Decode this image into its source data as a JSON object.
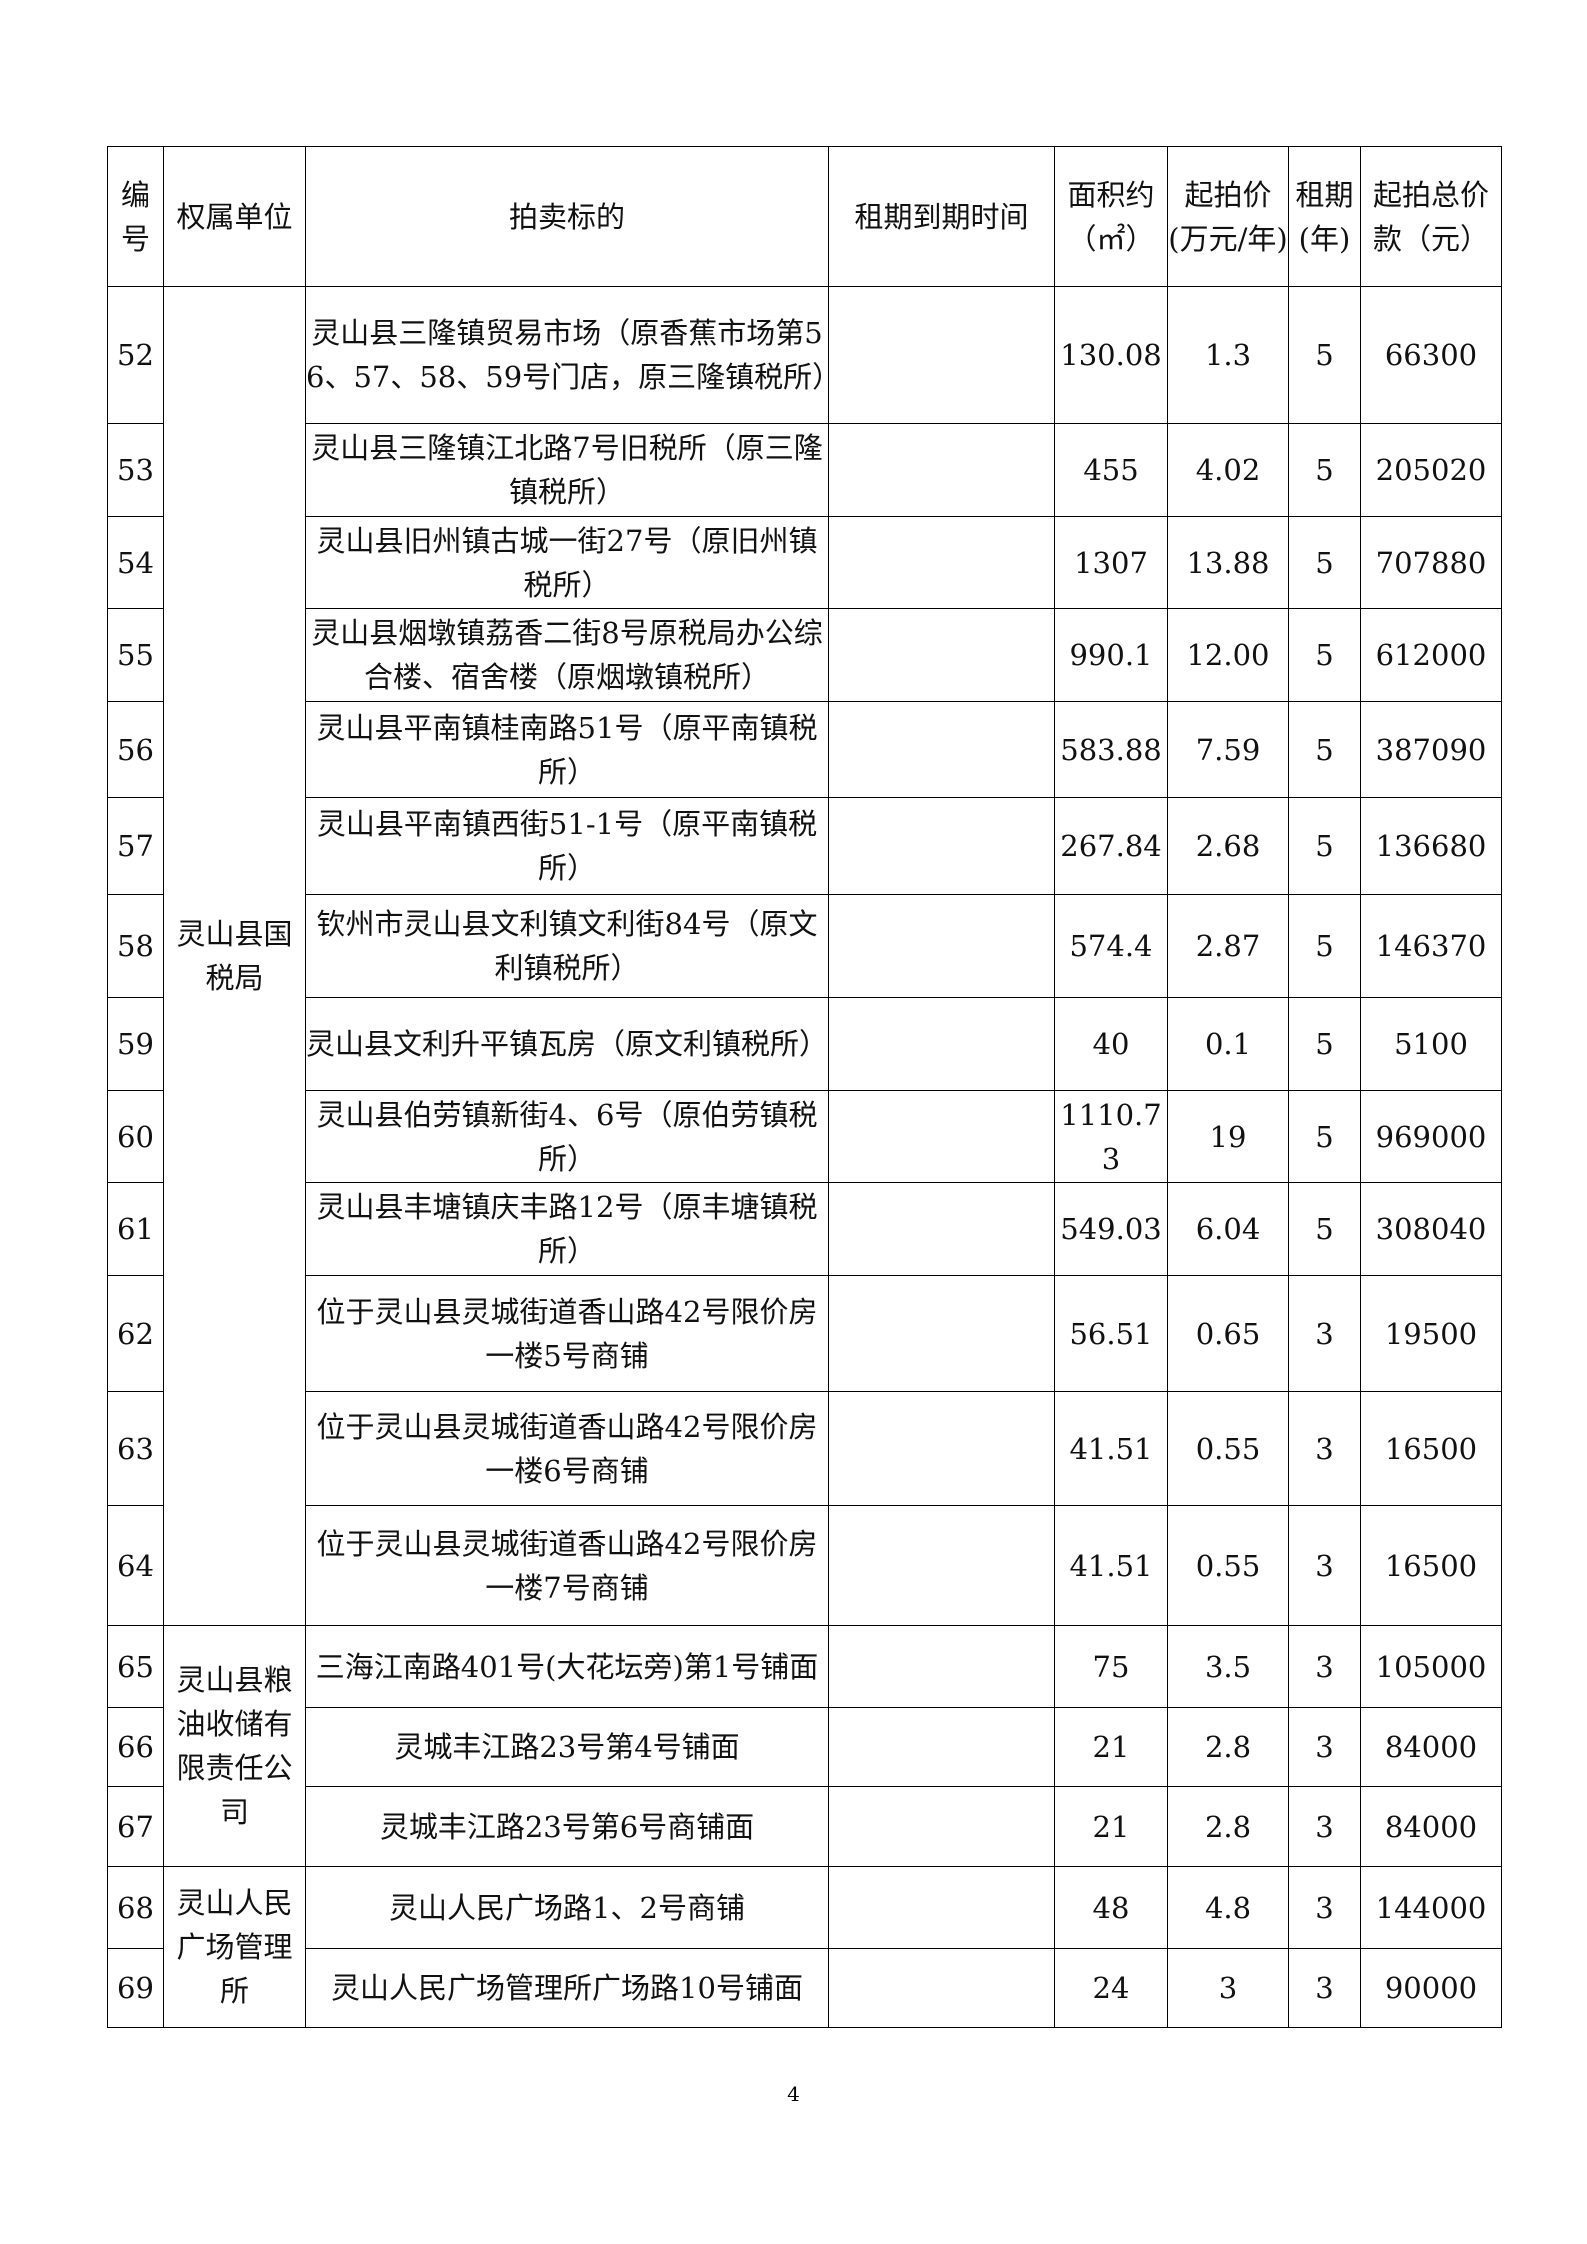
{
  "table": {
    "header": [
      "编号",
      "权属单位",
      "拍卖标的",
      "租期到期时间",
      "面积约（㎡）",
      "起拍价(万元/年)",
      "租期(年)",
      "起拍总价款（元）"
    ],
    "groups": [
      {
        "unit": "灵山县国税局",
        "rows": [
          [
            "52",
            "灵山县三隆镇贸易市场（原香蕉市场第56、57、58、59号门店，原三隆镇税所）",
            "130.08",
            "1.3",
            "5",
            "66300"
          ],
          [
            "53",
            "灵山县三隆镇江北路7号旧税所（原三隆镇税所）",
            "455",
            "4.02",
            "5",
            "205020"
          ],
          [
            "54",
            "灵山县旧州镇古城一街27号（原旧州镇税所）",
            "1307",
            "13.88",
            "5",
            "707880"
          ],
          [
            "55",
            "灵山县烟墩镇荔香二街8号原税局办公综合楼、宿舍楼（原烟墩镇税所）",
            "990.1",
            "12.00",
            "5",
            "612000"
          ],
          [
            "56",
            "灵山县平南镇桂南路51号（原平南镇税所）",
            "583.88",
            "7.59",
            "5",
            "387090"
          ],
          [
            "57",
            "灵山县平南镇西街51-1号（原平南镇税所）",
            "267.84",
            "2.68",
            "5",
            "136680"
          ],
          [
            "58",
            "钦州市灵山县文利镇文利街84号（原文利镇税所）",
            "574.4",
            "2.87",
            "5",
            "146370"
          ],
          [
            "59",
            "灵山县文利升平镇瓦房（原文利镇税所）",
            "40",
            "0.1",
            "5",
            "5100"
          ],
          [
            "60",
            "灵山县伯劳镇新街4、6号（原伯劳镇税所）",
            "1110.73",
            "19",
            "5",
            "969000"
          ],
          [
            "61",
            "灵山县丰塘镇庆丰路12号（原丰塘镇税所）",
            "549.03",
            "6.04",
            "5",
            "308040"
          ],
          [
            "62",
            "位于灵山县灵城街道香山路42号限价房一楼5号商铺",
            "56.51",
            "0.65",
            "3",
            "19500"
          ],
          [
            "63",
            "位于灵山县灵城街道香山路42号限价房一楼6号商铺",
            "41.51",
            "0.55",
            "3",
            "16500"
          ],
          [
            "64",
            "位于灵山县灵城街道香山路42号限价房一楼7号商铺",
            "41.51",
            "0.55",
            "3",
            "16500"
          ]
        ]
      },
      {
        "unit": "灵山县粮油收储有限责任公司",
        "rows": [
          [
            "65",
            "三海江南路401号(大花坛旁)第1号铺面",
            "75",
            "3.5",
            "3",
            "105000"
          ],
          [
            "66",
            "灵城丰江路23号第4号铺面",
            "21",
            "2.8",
            "3",
            "84000"
          ],
          [
            "67",
            "灵城丰江路23号第6号商铺面",
            "21",
            "2.8",
            "3",
            "84000"
          ]
        ]
      },
      {
        "unit": "灵山人民广场管理所",
        "rows": [
          [
            "68",
            "灵山人民广场路1、2号商铺",
            "48",
            "4.8",
            "3",
            "144000"
          ],
          [
            "69",
            "灵山人民广场管理所广场路10号铺面",
            "24",
            "3",
            "3",
            "90000"
          ]
        ]
      }
    ]
  },
  "footer": {
    "page_number": "4"
  }
}
